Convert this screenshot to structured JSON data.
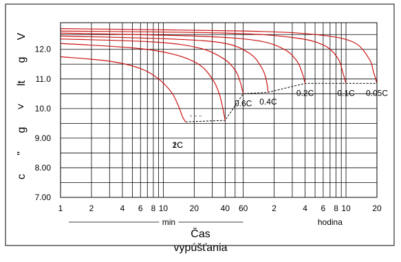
{
  "chart_data": {
    "type": "line",
    "title": "",
    "ylabel": "c \" g ˅ lt g V",
    "xlabel_lines": [
      "Čas",
      "vypúšťania"
    ],
    "x_scale": "log",
    "xlim_minutes": [
      1,
      1200
    ],
    "ylim": [
      7.0,
      12.9
    ],
    "y_ticks": [
      "7.00",
      "8.00",
      "9.00",
      "10.0",
      "11.0",
      "12.0"
    ],
    "y_tick_values": [
      7,
      8,
      9,
      10,
      11,
      12
    ],
    "x_ticks": [
      {
        "label": "1",
        "minutes": 1
      },
      {
        "label": "2",
        "minutes": 2
      },
      {
        "label": "4",
        "minutes": 4
      },
      {
        "label": "6",
        "minutes": 6
      },
      {
        "label": "8",
        "minutes": 8
      },
      {
        "label": "10",
        "minutes": 10
      },
      {
        "label": "20",
        "minutes": 20
      },
      {
        "label": "40",
        "minutes": 40
      },
      {
        "label": "60",
        "minutes": 60
      },
      {
        "label": "2",
        "minutes": 120
      },
      {
        "label": "4",
        "minutes": 240
      },
      {
        "label": "6",
        "minutes": 360
      },
      {
        "label": "8",
        "minutes": 480
      },
      {
        "label": "10",
        "minutes": 600
      },
      {
        "label": "20",
        "minutes": 1200
      }
    ],
    "grid_minutes": [
      1,
      2,
      3,
      4,
      5,
      6,
      7,
      8,
      9,
      10,
      20,
      30,
      40,
      50,
      60,
      120,
      180,
      240,
      300,
      360,
      420,
      480,
      540,
      600,
      1200
    ],
    "unit_labels": {
      "minutes": "min",
      "hours": "hodina"
    },
    "grid": true,
    "series": [
      {
        "name": "2C",
        "x_minutes": [
          1,
          3,
          6,
          9,
          12,
          14,
          15.5,
          16.5
        ],
        "y": [
          11.75,
          11.6,
          11.35,
          11.0,
          10.55,
          10.1,
          9.7,
          9.55
        ]
      },
      {
        "name": "1C",
        "x_minutes": [
          1,
          5,
          12,
          22,
          30,
          35,
          38,
          40
        ],
        "y": [
          12.2,
          12.05,
          11.85,
          11.5,
          11.0,
          10.5,
          10.0,
          9.6
        ]
      },
      {
        "name": "0.6C",
        "x_minutes": [
          1,
          8,
          22,
          38,
          50,
          56,
          60
        ],
        "y": [
          12.35,
          12.25,
          12.05,
          11.7,
          11.3,
          10.9,
          10.5
        ]
      },
      {
        "name": "0.4C",
        "x_minutes": [
          1,
          12,
          40,
          70,
          90,
          100,
          105
        ],
        "y": [
          12.45,
          12.35,
          12.2,
          11.85,
          11.4,
          11.0,
          10.55
        ]
      },
      {
        "name": "0.2C",
        "x_minutes": [
          1,
          20,
          80,
          150,
          200,
          225,
          240
        ],
        "y": [
          12.55,
          12.45,
          12.3,
          12.0,
          11.6,
          11.2,
          10.85
        ]
      },
      {
        "name": "0.1C",
        "x_minutes": [
          1,
          40,
          180,
          360,
          500,
          560,
          600
        ],
        "y": [
          12.62,
          12.55,
          12.4,
          12.15,
          11.7,
          11.2,
          10.85
        ]
      },
      {
        "name": "0.05C",
        "x_minutes": [
          1,
          60,
          300,
          700,
          1000,
          1120,
          1200
        ],
        "y": [
          12.7,
          12.62,
          12.5,
          12.25,
          11.7,
          11.2,
          10.85
        ]
      }
    ],
    "cutoff_line": {
      "x_minutes": [
        16.5,
        40,
        60,
        105,
        240,
        600,
        1200
      ],
      "y": [
        9.55,
        9.6,
        10.5,
        10.55,
        10.85,
        10.85,
        10.85
      ]
    },
    "dotted_label": "\" \" \"",
    "series_labels": [
      {
        "text": "2C",
        "series": "2C"
      },
      {
        "text": "1C",
        "series": "1C"
      },
      {
        "text": "0.6C",
        "series": "0.6C"
      },
      {
        "text": "0.4C",
        "series": "0.4C"
      },
      {
        "text": "0.2C",
        "series": "0.2C"
      },
      {
        "text": "0.1C",
        "series": "0.1C"
      },
      {
        "text": "0.05C",
        "series": "0.05C"
      }
    ],
    "colors": {
      "curve": "#cc1111",
      "grid": "#000000",
      "cutoff": "#000000"
    }
  }
}
